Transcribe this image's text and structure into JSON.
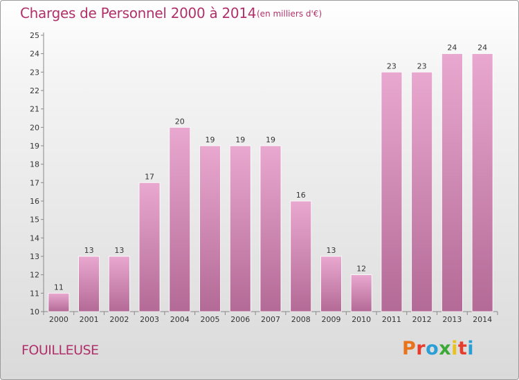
{
  "header": {
    "title": "Charges de Personnel 2000 à 2014",
    "subtitle": "(en milliers d'€)"
  },
  "footer": {
    "commune": "FOUILLEUSE",
    "logo_text": "Proxiti",
    "logo_colors": [
      "#e8731a",
      "#e63c2e",
      "#2a9fd6",
      "#3aa935",
      "#e8c21a",
      "#e63c2e",
      "#2a9fd6"
    ]
  },
  "colors": {
    "title": "#b0306a",
    "bar_top": "#e9a8cf",
    "bar_bottom": "#b36a96",
    "bar_edge": "#ffffff"
  },
  "chart_data": {
    "type": "bar",
    "title": "Charges de Personnel 2000 à 2014",
    "subtitle": "(en milliers d'€)",
    "categories": [
      "2000",
      "2001",
      "2002",
      "2003",
      "2004",
      "2005",
      "2006",
      "2007",
      "2008",
      "2009",
      "2010",
      "2011",
      "2012",
      "2013",
      "2014"
    ],
    "values": [
      11,
      13,
      13,
      17,
      20,
      19,
      19,
      19,
      16,
      13,
      12,
      23,
      23,
      24,
      24
    ],
    "ylim": [
      10,
      25
    ],
    "yticks": [
      10,
      11,
      12,
      13,
      14,
      15,
      16,
      17,
      18,
      19,
      20,
      21,
      22,
      23,
      24,
      25
    ],
    "xlabel": "",
    "ylabel": "",
    "grid": false,
    "data_labels": true
  }
}
